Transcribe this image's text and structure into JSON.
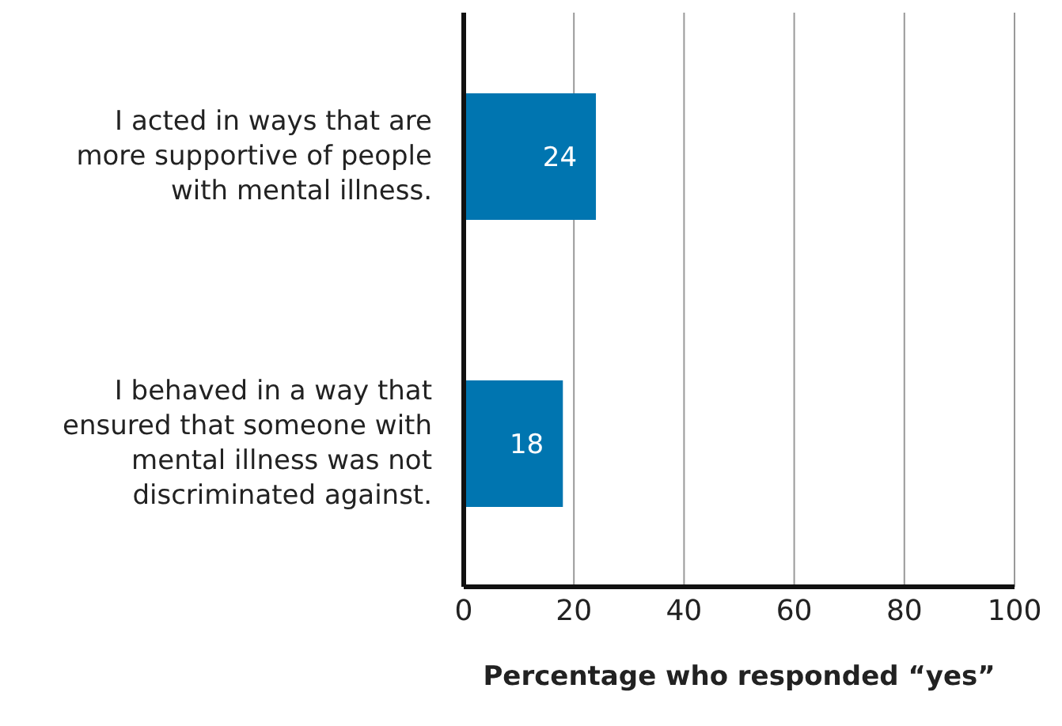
{
  "chart_data": {
    "type": "bar",
    "orientation": "horizontal",
    "categories": [
      "I acted in ways that are more supportive of people with mental illness.",
      "I behaved in a way that ensured that someone with mental illness was not discriminated against."
    ],
    "values": [
      24,
      18
    ],
    "color": "#0075b0",
    "xlim": [
      0,
      100
    ],
    "xticks": [
      0,
      20,
      40,
      60,
      80,
      100
    ],
    "xlabel": "Percentage who responded “yes”",
    "grid": "x",
    "data_labels": true
  }
}
